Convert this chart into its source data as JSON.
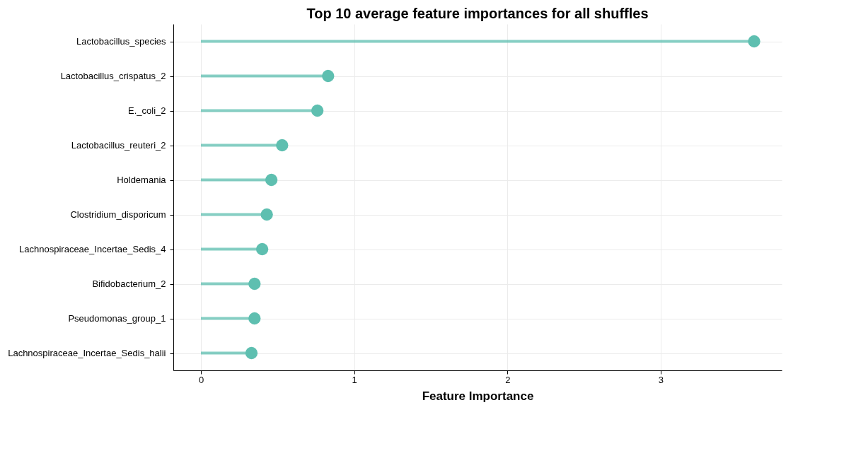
{
  "chart_data": {
    "type": "lollipop",
    "orientation": "horizontal",
    "title": "Top 10 average feature importances for all shuffles",
    "xlabel": "Feature Importance",
    "categories": [
      "Lactobacillus_species",
      "Lactobacillus_crispatus_2",
      "E._coli_2",
      "Lactobacillus_reuteri_2",
      "Holdemania",
      "Clostridium_disporicum",
      "Lachnospiraceae_Incertae_Sedis_4",
      "Bifidobacterium_2",
      "Pseudomonas_group_1",
      "Lachnospiraceae_Incertae_Sedis_halii"
    ],
    "series": [
      {
        "color": "#5ebfb0",
        "values": [
          3.61,
          0.83,
          0.76,
          0.53,
          0.46,
          0.43,
          0.4,
          0.35,
          0.35,
          0.33
        ]
      }
    ],
    "xlim": [
      -0.18,
      3.79
    ],
    "xticks": [
      0,
      1,
      2,
      3
    ],
    "grid": true,
    "marker": "circle"
  }
}
